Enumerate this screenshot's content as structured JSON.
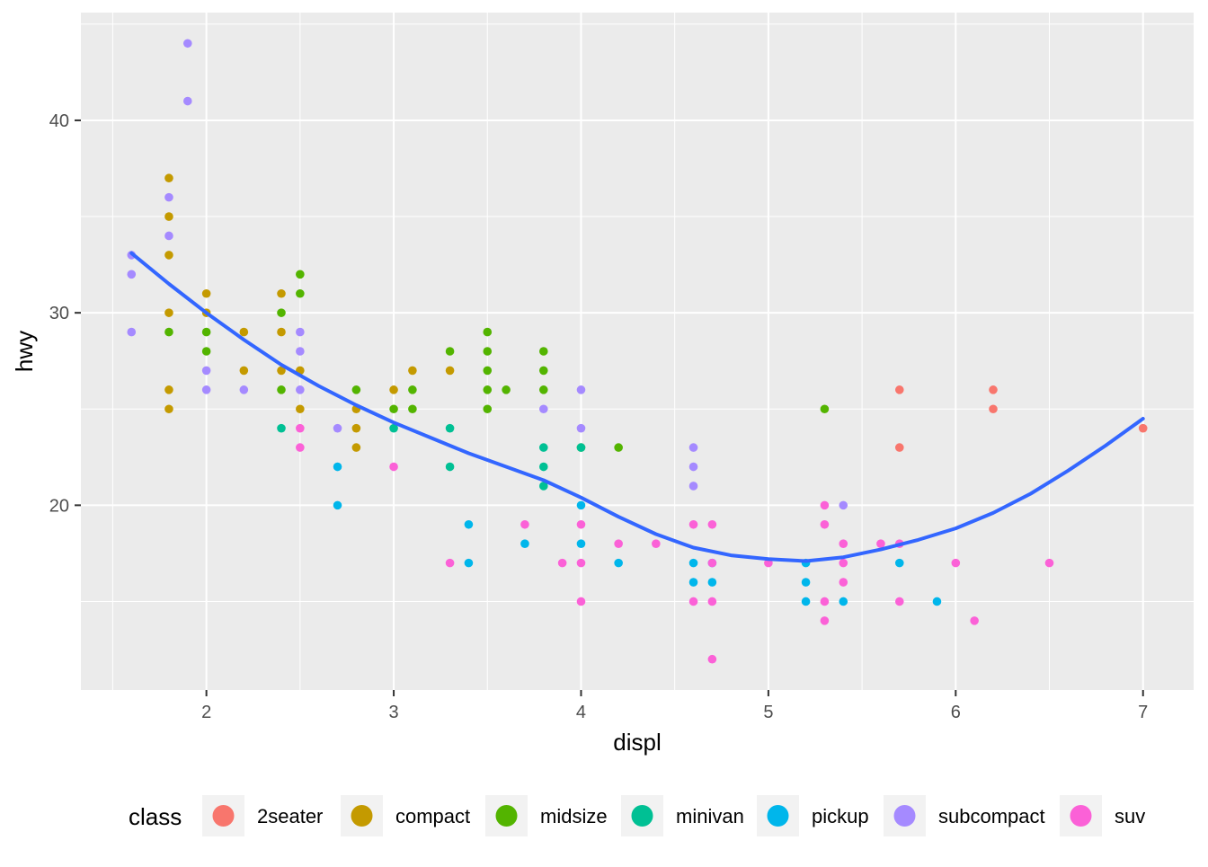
{
  "chart_data": {
    "type": "scatter",
    "title": "",
    "xlabel": "displ",
    "ylabel": "hwy",
    "xlim": [
      1.33,
      7.27
    ],
    "ylim": [
      10.4,
      45.6
    ],
    "x_ticks": [
      2,
      3,
      4,
      5,
      6,
      7
    ],
    "y_ticks": [
      20,
      30,
      40
    ],
    "x_tick_labels": [
      "2",
      "3",
      "4",
      "5",
      "6",
      "7"
    ],
    "y_tick_labels": [
      "20",
      "30",
      "40"
    ],
    "grid": true,
    "background": "#ebebeb",
    "legend": {
      "title": "class",
      "position": "bottom",
      "entries": [
        {
          "name": "2seater",
          "color": "#F8766D"
        },
        {
          "name": "compact",
          "color": "#C49A00"
        },
        {
          "name": "midsize",
          "color": "#53B400"
        },
        {
          "name": "minivan",
          "color": "#00C094"
        },
        {
          "name": "pickup",
          "color": "#00B6EB"
        },
        {
          "name": "subcompact",
          "color": "#A58AFF"
        },
        {
          "name": "suv",
          "color": "#FB61D7"
        }
      ]
    },
    "series": [
      {
        "name": "2seater",
        "color": "#F8766D",
        "points": [
          [
            5.7,
            26
          ],
          [
            5.7,
            23
          ],
          [
            6.2,
            26
          ],
          [
            6.2,
            25
          ],
          [
            7.0,
            24
          ]
        ]
      },
      {
        "name": "compact",
        "color": "#C49A00",
        "points": [
          [
            1.8,
            37
          ],
          [
            1.8,
            35
          ],
          [
            1.8,
            33
          ],
          [
            1.8,
            30
          ],
          [
            1.8,
            26
          ],
          [
            1.8,
            25
          ],
          [
            2.0,
            31
          ],
          [
            2.0,
            30
          ],
          [
            2.2,
            29
          ],
          [
            2.2,
            27
          ],
          [
            2.4,
            31
          ],
          [
            2.4,
            29
          ],
          [
            2.4,
            27
          ],
          [
            2.5,
            27
          ],
          [
            2.5,
            25
          ],
          [
            2.8,
            25
          ],
          [
            2.8,
            24
          ],
          [
            2.8,
            23
          ],
          [
            3.0,
            26
          ],
          [
            3.1,
            27
          ],
          [
            3.3,
            27
          ]
        ]
      },
      {
        "name": "midsize",
        "color": "#53B400",
        "points": [
          [
            1.8,
            29
          ],
          [
            2.0,
            29
          ],
          [
            2.0,
            28
          ],
          [
            2.4,
            30
          ],
          [
            2.4,
            26
          ],
          [
            2.5,
            32
          ],
          [
            2.5,
            31
          ],
          [
            2.8,
            26
          ],
          [
            3.0,
            25
          ],
          [
            3.1,
            26
          ],
          [
            3.1,
            25
          ],
          [
            3.3,
            28
          ],
          [
            3.5,
            29
          ],
          [
            3.5,
            28
          ],
          [
            3.5,
            27
          ],
          [
            3.5,
            26
          ],
          [
            3.5,
            25
          ],
          [
            3.6,
            26
          ],
          [
            3.8,
            28
          ],
          [
            3.8,
            27
          ],
          [
            3.8,
            26
          ],
          [
            4.0,
            23
          ],
          [
            4.2,
            23
          ],
          [
            5.3,
            25
          ]
        ]
      },
      {
        "name": "minivan",
        "color": "#00C094",
        "points": [
          [
            2.4,
            24
          ],
          [
            3.0,
            24
          ],
          [
            3.3,
            24
          ],
          [
            3.3,
            22
          ],
          [
            3.8,
            23
          ],
          [
            3.8,
            22
          ],
          [
            3.8,
            21
          ],
          [
            4.0,
            23
          ]
        ]
      },
      {
        "name": "pickup",
        "color": "#00B6EB",
        "points": [
          [
            2.7,
            22
          ],
          [
            2.7,
            20
          ],
          [
            3.4,
            19
          ],
          [
            3.4,
            17
          ],
          [
            3.7,
            18
          ],
          [
            4.0,
            20
          ],
          [
            4.0,
            18
          ],
          [
            4.2,
            17
          ],
          [
            4.6,
            17
          ],
          [
            4.6,
            16
          ],
          [
            4.7,
            17
          ],
          [
            4.7,
            16
          ],
          [
            5.2,
            17
          ],
          [
            5.2,
            16
          ],
          [
            5.2,
            15
          ],
          [
            5.4,
            15
          ],
          [
            5.7,
            17
          ],
          [
            5.9,
            15
          ]
        ]
      },
      {
        "name": "subcompact",
        "color": "#A58AFF",
        "points": [
          [
            1.6,
            33
          ],
          [
            1.6,
            32
          ],
          [
            1.6,
            29
          ],
          [
            1.8,
            36
          ],
          [
            1.8,
            34
          ],
          [
            1.9,
            44
          ],
          [
            1.9,
            41
          ],
          [
            2.0,
            27
          ],
          [
            2.0,
            26
          ],
          [
            2.2,
            26
          ],
          [
            2.5,
            29
          ],
          [
            2.5,
            28
          ],
          [
            2.5,
            26
          ],
          [
            2.7,
            24
          ],
          [
            3.8,
            25
          ],
          [
            4.0,
            26
          ],
          [
            4.0,
            24
          ],
          [
            4.6,
            23
          ],
          [
            4.6,
            22
          ],
          [
            4.6,
            21
          ],
          [
            5.4,
            20
          ]
        ]
      },
      {
        "name": "suv",
        "color": "#FB61D7",
        "points": [
          [
            2.5,
            24
          ],
          [
            2.5,
            23
          ],
          [
            3.0,
            22
          ],
          [
            3.3,
            17
          ],
          [
            3.7,
            19
          ],
          [
            3.9,
            17
          ],
          [
            4.0,
            19
          ],
          [
            4.0,
            17
          ],
          [
            4.0,
            15
          ],
          [
            4.2,
            18
          ],
          [
            4.4,
            18
          ],
          [
            4.6,
            19
          ],
          [
            4.6,
            15
          ],
          [
            4.7,
            19
          ],
          [
            4.7,
            17
          ],
          [
            4.7,
            15
          ],
          [
            4.7,
            12
          ],
          [
            5.0,
            17
          ],
          [
            5.3,
            20
          ],
          [
            5.3,
            19
          ],
          [
            5.3,
            15
          ],
          [
            5.3,
            14
          ],
          [
            5.4,
            18
          ],
          [
            5.4,
            17
          ],
          [
            5.4,
            16
          ],
          [
            5.6,
            18
          ],
          [
            5.7,
            18
          ],
          [
            5.7,
            15
          ],
          [
            6.0,
            17
          ],
          [
            6.1,
            14
          ],
          [
            6.5,
            17
          ]
        ]
      }
    ],
    "smooth": {
      "color": "#3366FF",
      "points": [
        [
          1.6,
          33.1
        ],
        [
          1.8,
          31.5
        ],
        [
          2.0,
          30.0
        ],
        [
          2.2,
          28.6
        ],
        [
          2.4,
          27.3
        ],
        [
          2.6,
          26.2
        ],
        [
          2.8,
          25.2
        ],
        [
          3.0,
          24.3
        ],
        [
          3.2,
          23.5
        ],
        [
          3.4,
          22.7
        ],
        [
          3.6,
          22.0
        ],
        [
          3.8,
          21.3
        ],
        [
          4.0,
          20.4
        ],
        [
          4.2,
          19.4
        ],
        [
          4.4,
          18.5
        ],
        [
          4.6,
          17.8
        ],
        [
          4.8,
          17.4
        ],
        [
          5.0,
          17.2
        ],
        [
          5.2,
          17.1
        ],
        [
          5.4,
          17.3
        ],
        [
          5.6,
          17.7
        ],
        [
          5.8,
          18.2
        ],
        [
          6.0,
          18.8
        ],
        [
          6.2,
          19.6
        ],
        [
          6.4,
          20.6
        ],
        [
          6.6,
          21.8
        ],
        [
          6.8,
          23.1
        ],
        [
          7.0,
          24.5
        ]
      ]
    }
  }
}
